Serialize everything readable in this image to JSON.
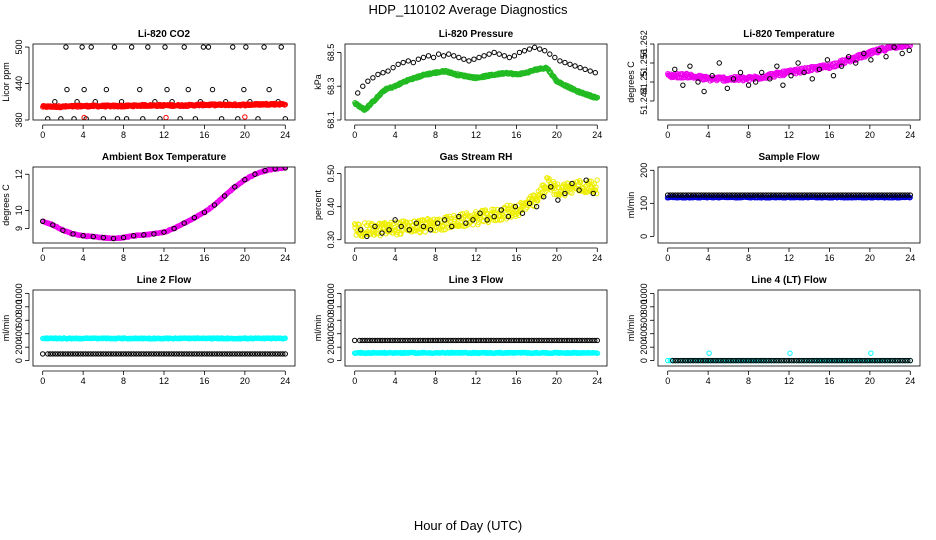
{
  "page": {
    "title": "HDP_110102  Average Diagnostics",
    "xlabel": "Hour of Day (UTC)"
  },
  "chart_data": [
    {
      "type": "scatter",
      "title": "Li-820 CO2",
      "ylabel": "Licor ppm",
      "xlim": [
        0,
        24
      ],
      "ylim": [
        380,
        505
      ],
      "yticks": [
        380,
        440,
        500
      ],
      "xticks": [
        0,
        4,
        8,
        12,
        16,
        20,
        24
      ],
      "series": [
        {
          "color": "#000000",
          "x": [
            0.5,
            1.2,
            1.8,
            2.3,
            2.4,
            3.1,
            3.4,
            3.9,
            4.1,
            4.3,
            4.8,
            5.2,
            6.0,
            6.3,
            7.1,
            7.4,
            7.8,
            8.3,
            8.8,
            9.6,
            9.9,
            10.4,
            11.1,
            11.6,
            12.1,
            12.3,
            12.8,
            13.6,
            14.0,
            14.4,
            15.1,
            15.6,
            15.9,
            16.4,
            16.8,
            17.7,
            18.1,
            18.8,
            19.3,
            19.9,
            20.1,
            20.5,
            21.3,
            21.9,
            22.4,
            23.3,
            23.6,
            24.0
          ],
          "y": [
            382,
            410,
            382,
            500,
            430,
            382,
            410,
            500,
            430,
            382,
            500,
            410,
            382,
            430,
            500,
            382,
            410,
            382,
            500,
            430,
            382,
            500,
            410,
            382,
            500,
            430,
            410,
            382,
            500,
            430,
            382,
            410,
            500,
            500,
            430,
            382,
            410,
            500,
            382,
            430,
            500,
            410,
            382,
            500,
            430,
            410,
            500,
            382
          ]
        },
        {
          "color": "#ff0000",
          "band": true,
          "x": [
            0,
            2,
            4,
            6,
            8,
            10,
            12,
            14,
            16,
            18,
            20,
            22,
            24
          ],
          "y": [
            402,
            402,
            403,
            403,
            403,
            404,
            404,
            404,
            405,
            405,
            405,
            406,
            406
          ],
          "x_extra": [
            4.1,
            12.2,
            20.0
          ],
          "y_extra": [
            384,
            384,
            385
          ]
        }
      ]
    },
    {
      "type": "scatter",
      "title": "Li-820 Pressure",
      "ylabel": "kPa",
      "xlim": [
        0,
        24
      ],
      "ylim": [
        68.1,
        68.55
      ],
      "yticks": [
        68.1,
        68.3,
        68.5
      ],
      "xticks": [
        0,
        4,
        8,
        12,
        16,
        20,
        24
      ],
      "series": [
        {
          "color": "#000000",
          "x": [
            0.3,
            0.8,
            1.3,
            1.8,
            2.3,
            2.8,
            3.3,
            3.8,
            4.3,
            4.8,
            5.3,
            5.8,
            6.3,
            6.8,
            7.3,
            7.8,
            8.3,
            8.8,
            9.3,
            9.8,
            10.3,
            10.8,
            11.3,
            11.8,
            12.3,
            12.8,
            13.3,
            13.8,
            14.3,
            14.8,
            15.3,
            15.8,
            16.3,
            16.8,
            17.3,
            17.8,
            18.3,
            18.8,
            19.3,
            19.8,
            20.3,
            20.8,
            21.3,
            21.8,
            22.3,
            22.8,
            23.3,
            23.8
          ],
          "y": [
            68.26,
            68.3,
            68.33,
            68.35,
            68.37,
            68.38,
            68.39,
            68.41,
            68.43,
            68.44,
            68.45,
            68.44,
            68.46,
            68.47,
            68.48,
            68.47,
            68.49,
            68.48,
            68.49,
            68.48,
            68.47,
            68.46,
            68.45,
            68.46,
            68.47,
            68.48,
            68.49,
            68.5,
            68.49,
            68.48,
            68.47,
            68.48,
            68.5,
            68.51,
            68.52,
            68.53,
            68.52,
            68.51,
            68.49,
            68.47,
            68.45,
            68.44,
            68.43,
            68.42,
            68.41,
            68.4,
            68.39,
            68.38
          ]
        },
        {
          "color": "#22bb22",
          "band": true,
          "x": [
            0,
            1,
            2,
            3,
            4,
            5,
            6,
            7,
            8,
            9,
            10,
            11,
            12,
            13,
            14,
            15,
            16,
            17,
            18,
            19,
            20,
            21,
            22,
            23,
            24
          ],
          "y": [
            68.2,
            68.16,
            68.22,
            68.28,
            68.3,
            68.33,
            68.35,
            68.37,
            68.38,
            68.39,
            68.37,
            68.36,
            68.35,
            68.36,
            68.37,
            68.38,
            68.37,
            68.38,
            68.4,
            68.41,
            68.33,
            68.3,
            68.27,
            68.25,
            68.23
          ]
        }
      ]
    },
    {
      "type": "scatter",
      "title": "Li-820 Temperature",
      "ylabel": "degrees C",
      "xlim": [
        0,
        24
      ],
      "ylim": [
        51.238,
        51.262
      ],
      "yticks": [
        51.244,
        51.25,
        51.256,
        51.262
      ],
      "ytick_labels": [
        "51.244",
        "51.25",
        "51.256",
        "51.262"
      ],
      "xticks": [
        0,
        4,
        8,
        12,
        16,
        20,
        24
      ],
      "series": [
        {
          "color": "#ee00ee",
          "band": true,
          "scatter_width": 0.01,
          "x": [
            0,
            2,
            4,
            6,
            8,
            10,
            12,
            14,
            16,
            18,
            20,
            22,
            24
          ],
          "y": [
            51.252,
            51.252,
            51.251,
            51.251,
            51.251,
            51.252,
            51.253,
            51.254,
            51.255,
            51.257,
            51.259,
            51.261,
            51.262
          ]
        },
        {
          "color": "#000000",
          "x": [
            0.7,
            1.5,
            2.2,
            3.0,
            3.6,
            4.4,
            5.1,
            5.9,
            6.5,
            7.2,
            8.0,
            8.7,
            9.3,
            10.1,
            10.8,
            11.4,
            12.2,
            12.9,
            13.5,
            14.3,
            15.0,
            15.8,
            16.4,
            17.2,
            17.9,
            18.6,
            19.4,
            20.1,
            20.9,
            21.6,
            22.4,
            23.2,
            23.9
          ],
          "y": [
            51.254,
            51.249,
            51.255,
            51.25,
            51.247,
            51.252,
            51.256,
            51.248,
            51.251,
            51.253,
            51.249,
            51.25,
            51.253,
            51.251,
            51.255,
            51.249,
            51.252,
            51.256,
            51.253,
            51.251,
            51.254,
            51.257,
            51.252,
            51.255,
            51.258,
            51.256,
            51.259,
            51.257,
            51.26,
            51.258,
            51.261,
            51.259,
            51.26
          ]
        }
      ]
    },
    {
      "type": "scatter",
      "title": "Ambient Box Temperature",
      "ylabel": "degrees C",
      "xlim": [
        0,
        24
      ],
      "ylim": [
        8.2,
        12.4
      ],
      "yticks": [
        9,
        10,
        12
      ],
      "xticks": [
        0,
        4,
        8,
        12,
        16,
        20,
        24
      ],
      "series": [
        {
          "color": "#ee00ee",
          "band": true,
          "thin": true,
          "x": [
            0,
            1,
            2,
            3,
            4,
            5,
            6,
            7,
            8,
            9,
            10,
            11,
            12,
            13,
            14,
            15,
            16,
            17,
            18,
            19,
            20,
            21,
            22,
            23,
            24
          ],
          "y": [
            9.4,
            9.2,
            8.9,
            8.7,
            8.6,
            8.55,
            8.5,
            8.45,
            8.5,
            8.6,
            8.65,
            8.7,
            8.8,
            9.0,
            9.3,
            9.6,
            9.9,
            10.3,
            10.8,
            11.3,
            11.7,
            12.0,
            12.2,
            12.3,
            12.35
          ]
        },
        {
          "color": "#000000",
          "x": [
            0,
            1,
            2,
            3,
            4,
            5,
            6,
            7,
            8,
            9,
            10,
            11,
            12,
            13,
            14,
            15,
            16,
            17,
            18,
            19,
            20,
            21,
            22,
            23,
            24
          ],
          "y": [
            9.4,
            9.2,
            8.9,
            8.7,
            8.6,
            8.55,
            8.5,
            8.45,
            8.5,
            8.6,
            8.65,
            8.7,
            8.8,
            9.0,
            9.3,
            9.6,
            9.9,
            10.3,
            10.8,
            11.3,
            11.7,
            12.0,
            12.2,
            12.3,
            12.35
          ]
        }
      ]
    },
    {
      "type": "scatter",
      "title": "Gas Stream RH",
      "ylabel": "percent",
      "xlim": [
        0,
        24
      ],
      "ylim": [
        0.29,
        0.52
      ],
      "yticks": [
        0.3,
        0.4,
        0.5
      ],
      "ytick_labels": [
        "0.30",
        "0.40",
        "0.50"
      ],
      "xticks": [
        0,
        4,
        8,
        12,
        16,
        20,
        24
      ],
      "series": [
        {
          "color": "#eeee00",
          "band": true,
          "scatter_width": 0.03,
          "x": [
            0,
            2,
            4,
            6,
            8,
            10,
            12,
            14,
            16,
            18,
            19,
            20,
            22,
            24
          ],
          "y": [
            0.33,
            0.33,
            0.335,
            0.34,
            0.345,
            0.355,
            0.365,
            0.375,
            0.39,
            0.42,
            0.47,
            0.45,
            0.46,
            0.46
          ]
        },
        {
          "color": "#000000",
          "x": [
            0.6,
            1.2,
            2.0,
            2.7,
            3.4,
            4.0,
            4.6,
            5.4,
            6.1,
            6.8,
            7.5,
            8.2,
            8.9,
            9.6,
            10.3,
            11.0,
            11.7,
            12.4,
            13.1,
            13.8,
            14.5,
            15.2,
            15.9,
            16.6,
            17.3,
            18.0,
            18.7,
            19.4,
            20.1,
            20.8,
            21.5,
            22.2,
            22.9,
            23.6
          ],
          "y": [
            0.33,
            0.31,
            0.34,
            0.32,
            0.33,
            0.36,
            0.34,
            0.33,
            0.35,
            0.34,
            0.33,
            0.35,
            0.36,
            0.34,
            0.37,
            0.35,
            0.36,
            0.38,
            0.36,
            0.37,
            0.39,
            0.37,
            0.4,
            0.38,
            0.41,
            0.4,
            0.43,
            0.46,
            0.42,
            0.44,
            0.47,
            0.45,
            0.48,
            0.44
          ]
        }
      ]
    },
    {
      "type": "scatter",
      "title": "Sample Flow",
      "ylabel": "ml/min",
      "xlim": [
        0,
        24
      ],
      "ylim": [
        -20,
        210
      ],
      "yticks": [
        0,
        100,
        200
      ],
      "xticks": [
        0,
        4,
        8,
        12,
        16,
        20,
        24
      ],
      "series": [
        {
          "color": "#0000dd",
          "band": true,
          "thin": true,
          "x": [
            0,
            24
          ],
          "y": [
            118,
            118
          ]
        },
        {
          "color": "#000000",
          "dense": true,
          "x": [
            0,
            24
          ],
          "y": [
            125,
            125
          ]
        }
      ]
    },
    {
      "type": "scatter",
      "title": "Line 2 Flow",
      "ylabel": "ml/min",
      "xlim": [
        0,
        24
      ],
      "ylim": [
        -80,
        1050
      ],
      "yticks": [
        0,
        200,
        400,
        600,
        800,
        1000
      ],
      "xticks": [
        0,
        4,
        8,
        12,
        16,
        20,
        24
      ],
      "series": [
        {
          "color": "#00ffff",
          "band": true,
          "thin": true,
          "x": [
            0,
            24
          ],
          "y": [
            330,
            330
          ]
        },
        {
          "color": "#000000",
          "dense": true,
          "x": [
            0.5,
            24
          ],
          "y": [
            100,
            100
          ],
          "x_extra": [
            0
          ],
          "y_extra": [
            100
          ]
        }
      ]
    },
    {
      "type": "scatter",
      "title": "Line 3 Flow",
      "ylabel": "ml/min",
      "xlim": [
        0,
        24
      ],
      "ylim": [
        -80,
        1050
      ],
      "yticks": [
        0,
        200,
        400,
        600,
        800,
        1000
      ],
      "xticks": [
        0,
        4,
        8,
        12,
        16,
        20,
        24
      ],
      "series": [
        {
          "color": "#00ffff",
          "band": true,
          "thin": true,
          "x": [
            0,
            24
          ],
          "y": [
            115,
            115
          ]
        },
        {
          "color": "#000000",
          "dense": true,
          "x": [
            0.5,
            24
          ],
          "y": [
            300,
            300
          ],
          "x_extra": [
            0
          ],
          "y_extra": [
            300
          ]
        }
      ]
    },
    {
      "type": "scatter",
      "title": "Line 4 (LT) Flow",
      "ylabel": "ml/min",
      "xlim": [
        0,
        24
      ],
      "ylim": [
        -80,
        1050
      ],
      "yticks": [
        0,
        200,
        400,
        600,
        800,
        1000
      ],
      "xticks": [
        0,
        4,
        8,
        12,
        16,
        20,
        24
      ],
      "series": [
        {
          "color": "#00ffff",
          "dense": true,
          "x": [
            0,
            24
          ],
          "y": [
            0,
            0
          ],
          "x_extra": [
            4.1,
            12.1,
            20.1
          ],
          "y_extra": [
            110,
            110,
            110
          ]
        },
        {
          "color": "#000000",
          "dense": true,
          "x": [
            0.5,
            24
          ],
          "y": [
            0,
            0
          ]
        }
      ]
    }
  ]
}
